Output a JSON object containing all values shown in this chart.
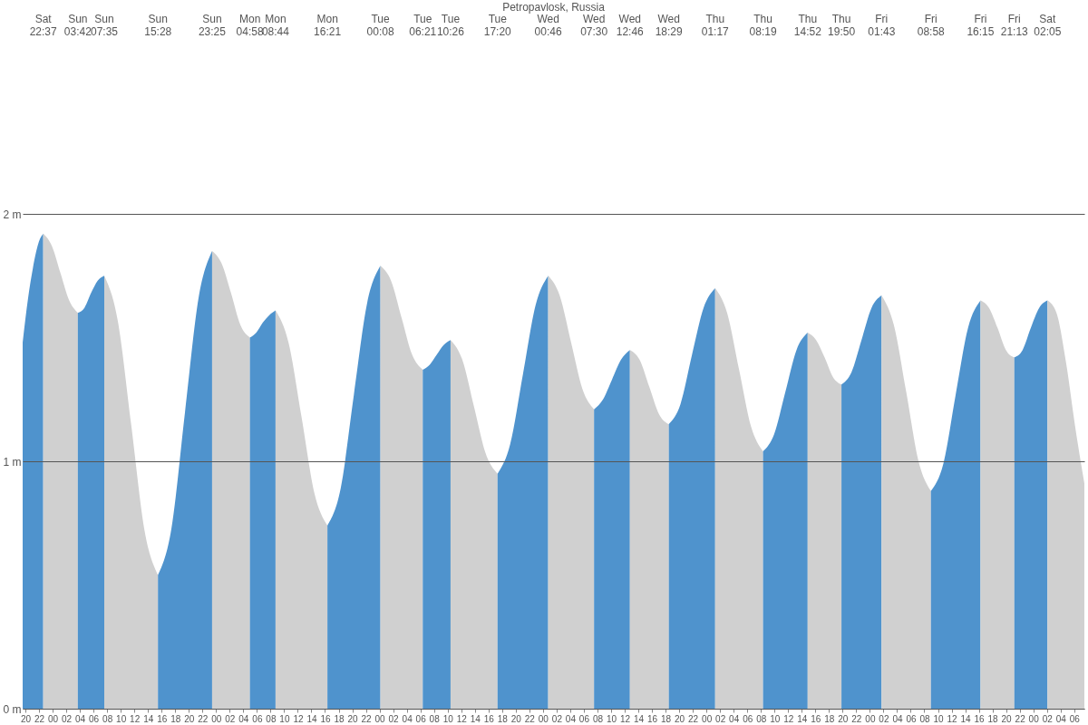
{
  "chart_data": {
    "type": "area",
    "title": "Petropavlosk, Russia",
    "xlim": [
      19.6,
      175.5
    ],
    "ylim": [
      0,
      2
    ],
    "yticks": [
      {
        "value": 0,
        "label": "0 m"
      },
      {
        "value": 1,
        "label": "1 m"
      },
      {
        "value": 2,
        "label": "2 m"
      }
    ],
    "grid": "y",
    "xticks": [
      {
        "value": 20,
        "label": "20"
      },
      {
        "value": 22,
        "label": "22"
      },
      {
        "value": 24,
        "label": "00"
      },
      {
        "value": 26,
        "label": "02"
      },
      {
        "value": 28,
        "label": "04"
      },
      {
        "value": 30,
        "label": "06"
      },
      {
        "value": 32,
        "label": "08"
      },
      {
        "value": 34,
        "label": "10"
      },
      {
        "value": 36,
        "label": "12"
      },
      {
        "value": 38,
        "label": "14"
      },
      {
        "value": 40,
        "label": "16"
      },
      {
        "value": 42,
        "label": "18"
      },
      {
        "value": 44,
        "label": "20"
      },
      {
        "value": 46,
        "label": "22"
      },
      {
        "value": 48,
        "label": "00"
      },
      {
        "value": 50,
        "label": "02"
      },
      {
        "value": 52,
        "label": "04"
      },
      {
        "value": 54,
        "label": "06"
      },
      {
        "value": 56,
        "label": "08"
      },
      {
        "value": 58,
        "label": "10"
      },
      {
        "value": 60,
        "label": "12"
      },
      {
        "value": 62,
        "label": "14"
      },
      {
        "value": 64,
        "label": "16"
      },
      {
        "value": 66,
        "label": "18"
      },
      {
        "value": 68,
        "label": "20"
      },
      {
        "value": 70,
        "label": "22"
      },
      {
        "value": 72,
        "label": "00"
      },
      {
        "value": 74,
        "label": "02"
      },
      {
        "value": 76,
        "label": "04"
      },
      {
        "value": 78,
        "label": "06"
      },
      {
        "value": 80,
        "label": "08"
      },
      {
        "value": 82,
        "label": "10"
      },
      {
        "value": 84,
        "label": "12"
      },
      {
        "value": 86,
        "label": "14"
      },
      {
        "value": 88,
        "label": "16"
      },
      {
        "value": 90,
        "label": "18"
      },
      {
        "value": 92,
        "label": "20"
      },
      {
        "value": 94,
        "label": "22"
      },
      {
        "value": 96,
        "label": "00"
      },
      {
        "value": 98,
        "label": "02"
      },
      {
        "value": 100,
        "label": "04"
      },
      {
        "value": 102,
        "label": "06"
      },
      {
        "value": 104,
        "label": "08"
      },
      {
        "value": 106,
        "label": "10"
      },
      {
        "value": 108,
        "label": "12"
      },
      {
        "value": 110,
        "label": "14"
      },
      {
        "value": 112,
        "label": "16"
      },
      {
        "value": 114,
        "label": "18"
      },
      {
        "value": 116,
        "label": "20"
      },
      {
        "value": 118,
        "label": "22"
      },
      {
        "value": 120,
        "label": "00"
      },
      {
        "value": 122,
        "label": "02"
      },
      {
        "value": 124,
        "label": "04"
      },
      {
        "value": 126,
        "label": "06"
      },
      {
        "value": 128,
        "label": "08"
      },
      {
        "value": 130,
        "label": "10"
      },
      {
        "value": 132,
        "label": "12"
      },
      {
        "value": 134,
        "label": "14"
      },
      {
        "value": 136,
        "label": "16"
      },
      {
        "value": 138,
        "label": "18"
      },
      {
        "value": 140,
        "label": "20"
      },
      {
        "value": 142,
        "label": "22"
      },
      {
        "value": 144,
        "label": "00"
      },
      {
        "value": 146,
        "label": "02"
      },
      {
        "value": 148,
        "label": "04"
      },
      {
        "value": 150,
        "label": "06"
      },
      {
        "value": 152,
        "label": "08"
      },
      {
        "value": 154,
        "label": "10"
      },
      {
        "value": 156,
        "label": "12"
      },
      {
        "value": 158,
        "label": "14"
      },
      {
        "value": 160,
        "label": "16"
      },
      {
        "value": 162,
        "label": "18"
      },
      {
        "value": 164,
        "label": "20"
      },
      {
        "value": 166,
        "label": "22"
      },
      {
        "value": 168,
        "label": "00"
      },
      {
        "value": 170,
        "label": "02"
      },
      {
        "value": 172,
        "label": "04"
      },
      {
        "value": 174,
        "label": "06"
      }
    ],
    "annotations": [
      "Sat 22:37",
      "Sun 03:42",
      "Sun 07:35",
      "Sun 15:28",
      "Sun 23:25",
      "Mon 04:58",
      "Mon 08:44",
      "Mon 16:21",
      "Tue 00:08",
      "Tue 06:21",
      "Tue 10:26",
      "Tue 17:20",
      "Wed 00:46",
      "Wed 07:30",
      "Wed 12:46",
      "Wed 18:29",
      "Thu 01:17",
      "Thu 08:19",
      "Thu 14:52",
      "Thu 19:50",
      "Fri 01:43",
      "Fri 08:58",
      "Fri 16:15",
      "Fri 21:13",
      "Sat 02:05"
    ],
    "series": [
      {
        "color": "#4f93cd",
        "x": [
          19.6,
          20.4,
          21.1,
          21.9,
          22.617
        ],
        "values": [
          1.48,
          1.66,
          1.78,
          1.88,
          1.92
        ]
      },
      {
        "color": "#d0d0d0",
        "x": [
          22.617,
          23.888,
          25.159,
          26.429,
          27.7
        ],
        "values": [
          1.92,
          1.87,
          1.76,
          1.65,
          1.6
        ]
      },
      {
        "color": "#4f93cd",
        "x": [
          27.7,
          28.671,
          29.642,
          30.612,
          31.583
        ],
        "values": [
          1.6,
          1.62,
          1.68,
          1.73,
          1.75
        ]
      },
      {
        "color": "#d0d0d0",
        "x": [
          31.583,
          33.554,
          35.525,
          37.496,
          39.467
        ],
        "values": [
          1.75,
          1.57,
          1.15,
          0.72,
          0.54
        ]
      },
      {
        "color": "#4f93cd",
        "x": [
          39.467,
          41.454,
          43.442,
          45.429,
          47.417
        ],
        "values": [
          0.54,
          0.73,
          1.2,
          1.66,
          1.85
        ]
      },
      {
        "color": "#d0d0d0",
        "x": [
          47.417,
          48.804,
          50.192,
          51.579,
          52.967
        ],
        "values": [
          1.85,
          1.8,
          1.68,
          1.55,
          1.5
        ]
      },
      {
        "color": "#4f93cd",
        "x": [
          52.967,
          53.908,
          54.85,
          55.792,
          56.733
        ],
        "values": [
          1.5,
          1.52,
          1.56,
          1.59,
          1.61
        ]
      },
      {
        "color": "#d0d0d0",
        "x": [
          56.733,
          58.637,
          60.542,
          62.446,
          64.35
        ],
        "values": [
          1.61,
          1.48,
          1.18,
          0.87,
          0.74
        ]
      },
      {
        "color": "#4f93cd",
        "x": [
          64.35,
          66.296,
          68.242,
          70.187,
          72.133
        ],
        "values": [
          0.74,
          0.89,
          1.27,
          1.64,
          1.79
        ]
      },
      {
        "color": "#d0d0d0",
        "x": [
          72.133,
          73.687,
          75.242,
          76.796,
          78.35
        ],
        "values": [
          1.79,
          1.73,
          1.58,
          1.43,
          1.37
        ]
      },
      {
        "color": "#4f93cd",
        "x": [
          78.35,
          79.371,
          80.392,
          81.412,
          82.433
        ],
        "values": [
          1.37,
          1.39,
          1.43,
          1.47,
          1.49
        ]
      },
      {
        "color": "#d0d0d0",
        "x": [
          82.433,
          84.158,
          85.883,
          87.608,
          89.333
        ],
        "values": [
          1.49,
          1.41,
          1.22,
          1.03,
          0.95
        ]
      },
      {
        "color": "#4f93cd",
        "x": [
          89.333,
          91.192,
          93.05,
          94.909,
          96.767
        ],
        "values": [
          0.95,
          1.07,
          1.35,
          1.63,
          1.75
        ]
      },
      {
        "color": "#d0d0d0",
        "x": [
          96.767,
          98.45,
          100.134,
          101.817,
          103.5
        ],
        "values": [
          1.75,
          1.67,
          1.48,
          1.29,
          1.21
        ]
      },
      {
        "color": "#4f93cd",
        "x": [
          103.5,
          104.817,
          106.134,
          107.45,
          108.767
        ],
        "values": [
          1.21,
          1.25,
          1.33,
          1.41,
          1.45
        ]
      },
      {
        "color": "#d0d0d0",
        "x": [
          108.767,
          110.196,
          111.625,
          113.054,
          114.483
        ],
        "values": [
          1.45,
          1.41,
          1.3,
          1.19,
          1.15
        ]
      },
      {
        "color": "#4f93cd",
        "x": [
          114.483,
          116.183,
          117.883,
          119.583,
          121.283
        ],
        "values": [
          1.15,
          1.23,
          1.43,
          1.62,
          1.7
        ]
      },
      {
        "color": "#d0d0d0",
        "x": [
          121.283,
          123.042,
          124.8,
          126.559,
          128.317
        ],
        "values": [
          1.7,
          1.6,
          1.37,
          1.14,
          1.04
        ]
      },
      {
        "color": "#4f93cd",
        "x": [
          128.317,
          129.955,
          131.592,
          133.23,
          134.867
        ],
        "values": [
          1.04,
          1.11,
          1.28,
          1.45,
          1.52
        ]
      },
      {
        "color": "#d0d0d0",
        "x": [
          134.867,
          136.109,
          137.35,
          138.592,
          139.833
        ],
        "values": [
          1.52,
          1.49,
          1.42,
          1.34,
          1.31
        ]
      },
      {
        "color": "#4f93cd",
        "x": [
          139.833,
          141.304,
          142.775,
          144.246,
          145.717
        ],
        "values": [
          1.31,
          1.36,
          1.49,
          1.62,
          1.67
        ]
      },
      {
        "color": "#d0d0d0",
        "x": [
          145.717,
          147.529,
          149.342,
          151.154,
          152.967
        ],
        "values": [
          1.67,
          1.55,
          1.28,
          1.0,
          0.88
        ]
      },
      {
        "color": "#4f93cd",
        "x": [
          152.967,
          154.788,
          156.609,
          158.429,
          160.25
        ],
        "values": [
          0.88,
          0.99,
          1.27,
          1.54,
          1.65
        ]
      },
      {
        "color": "#d0d0d0",
        "x": [
          160.25,
          161.492,
          162.734,
          163.975,
          165.217
        ],
        "values": [
          1.65,
          1.62,
          1.54,
          1.45,
          1.42
        ]
      },
      {
        "color": "#4f93cd",
        "x": [
          165.217,
          166.434,
          167.65,
          168.867,
          170.083
        ],
        "values": [
          1.42,
          1.45,
          1.54,
          1.62,
          1.65
        ]
      },
      {
        "color": "#d0d0d0",
        "x": [
          170.083,
          171.4,
          172.8,
          174.2,
          175.5
        ],
        "values": [
          1.65,
          1.6,
          1.4,
          1.13,
          0.91
        ]
      }
    ]
  }
}
